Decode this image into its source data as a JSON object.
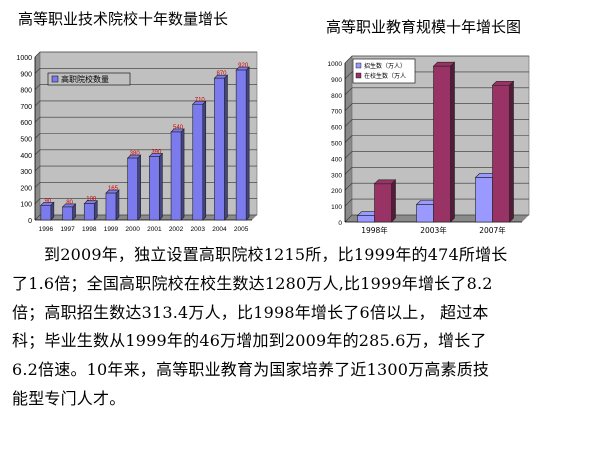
{
  "chart_data": [
    {
      "type": "bar",
      "title": "高等职业技术院校十年数量增长",
      "categories": [
        "1996",
        "1997",
        "1998",
        "1999",
        "2000",
        "2001",
        "2002",
        "2003",
        "2004",
        "2005"
      ],
      "series": [
        {
          "name": "高职院校数量",
          "values": [
            90,
            80,
            100,
            165,
            380,
            390,
            540,
            710,
            870,
            920
          ]
        }
      ],
      "data_labels": [
        "90",
        "80",
        "100",
        "165",
        "380",
        "390",
        "540",
        "710",
        "870",
        "920"
      ],
      "ylim": [
        0,
        1000
      ],
      "yticks": [
        "0",
        "100",
        "200",
        "300",
        "400",
        "500",
        "600",
        "700",
        "800",
        "900",
        "1000"
      ],
      "grid": true,
      "legend": "top-left",
      "colors": {
        "bar": "#7b7bee",
        "plot_bg": "#c0c0c0",
        "label": "#cc0000"
      }
    },
    {
      "type": "bar",
      "title": "高等职业教育规模十年增长图",
      "categories": [
        "1998年",
        "2003年",
        "2007年"
      ],
      "series": [
        {
          "name": "招生数（万人）",
          "values": [
            40,
            110,
            280
          ]
        },
        {
          "name": "在校生数（万人",
          "values": [
            240,
            980,
            860
          ]
        }
      ],
      "ylim": [
        0,
        1000
      ],
      "yticks": [
        "0",
        "100",
        "200",
        "300",
        "400",
        "500",
        "600",
        "700",
        "800",
        "900",
        "1000"
      ],
      "grid": true,
      "legend": "top-left",
      "colors": {
        "series1": "#9999ff",
        "series2": "#993366",
        "plot_bg": "#c0c0c0"
      }
    }
  ],
  "paragraph": {
    "line1": "到2009年，独立设置高职院校1215所，比1999年的474所增长",
    "line2": "了1.6倍；全国高职院校在校生数达1280万人,比1999年增长了8.2",
    "line3": "倍；高职招生数达313.4万人，比1998年增长了6倍以上，  超过本",
    "line4": "科；毕业生数从1999年的46万增加到2009年的285.6万，增长了",
    "line5": "6.2倍速。10年来，高等职业教育为国家培养了近1300万高素质技",
    "line6": "能型专门人才。"
  }
}
